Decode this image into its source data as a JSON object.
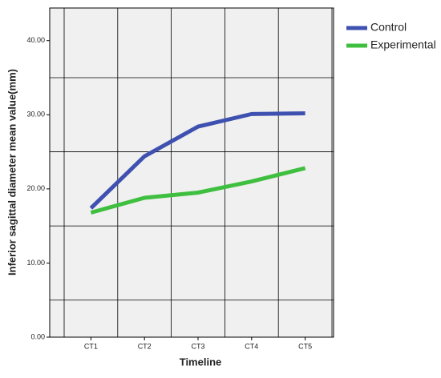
{
  "chart_data": {
    "type": "line",
    "x_label": "Timeline",
    "y_label": "Inferior sagittal diameter mean value(mm)",
    "categories": [
      "CT1",
      "CT2",
      "CT3",
      "CT4",
      "CT5"
    ],
    "series": [
      {
        "name": "Control",
        "color": "#3f51b0",
        "values": [
          17.4,
          24.4,
          28.4,
          30.1,
          30.2
        ]
      },
      {
        "name": "Experimental",
        "color": "#3fbf3f",
        "values": [
          16.8,
          18.8,
          19.5,
          21.0,
          22.8
        ]
      }
    ],
    "ylim": [
      0,
      44.4
    ],
    "yticks": [
      {
        "value": 0,
        "label": "0.00"
      },
      {
        "value": 10,
        "label": "10.00"
      },
      {
        "value": 20,
        "label": "20.00"
      },
      {
        "value": 30,
        "label": "30.00"
      },
      {
        "value": 40,
        "label": "40.00"
      }
    ],
    "ygrid": [
      5,
      15,
      25,
      35
    ],
    "grid": true,
    "legend": "right"
  }
}
